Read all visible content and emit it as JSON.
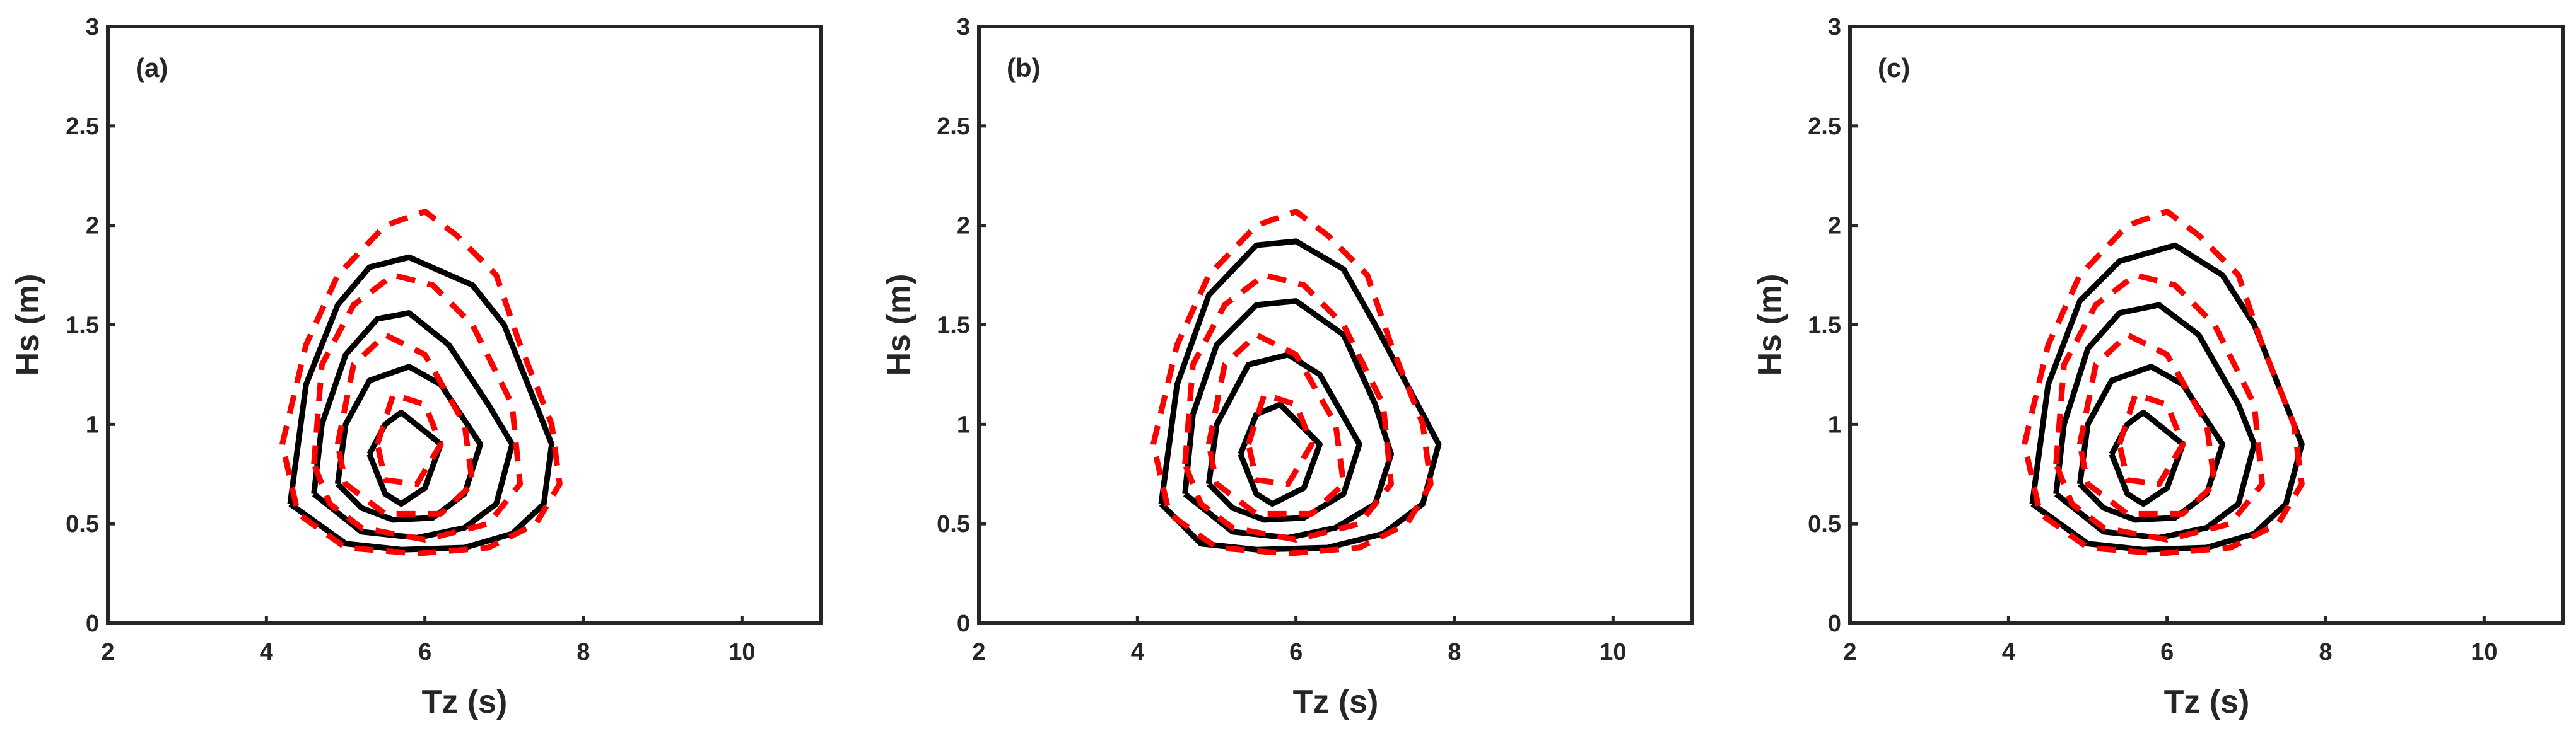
{
  "chart_data": [
    {
      "type": "line",
      "panel_label": "(a)",
      "xlabel": "Tz (s)",
      "ylabel": "Hs (m)",
      "xlim": [
        2,
        11
      ],
      "ylim": [
        0,
        3
      ],
      "xticks": [
        2,
        4,
        6,
        8,
        10
      ],
      "yticks": [
        0,
        0.5,
        1,
        1.5,
        2,
        2.5,
        3
      ],
      "series": [
        {
          "color": "#000000",
          "dashed": false,
          "x": [
            4.3,
            4.5,
            4.9,
            5.3,
            5.8,
            6.6,
            7.0,
            7.3,
            7.6,
            7.5,
            7.1,
            6.5,
            5.7,
            5.0,
            4.3
          ],
          "y": [
            0.6,
            1.2,
            1.6,
            1.79,
            1.84,
            1.7,
            1.5,
            1.2,
            0.9,
            0.6,
            0.45,
            0.38,
            0.37,
            0.4,
            0.6
          ]
        },
        {
          "color": "#000000",
          "dashed": false,
          "x": [
            4.6,
            4.7,
            5.0,
            5.4,
            5.8,
            6.3,
            6.8,
            7.1,
            6.9,
            6.5,
            5.9,
            5.2,
            4.6
          ],
          "y": [
            0.65,
            1.0,
            1.35,
            1.53,
            1.56,
            1.4,
            1.1,
            0.9,
            0.6,
            0.48,
            0.43,
            0.46,
            0.65
          ]
        },
        {
          "color": "#000000",
          "dashed": false,
          "x": [
            4.9,
            5.0,
            5.3,
            5.8,
            6.2,
            6.7,
            6.5,
            6.1,
            5.6,
            5.2,
            4.9
          ],
          "y": [
            0.7,
            1.0,
            1.22,
            1.29,
            1.2,
            0.9,
            0.65,
            0.53,
            0.52,
            0.58,
            0.7
          ]
        },
        {
          "color": "#000000",
          "dashed": false,
          "x": [
            5.3,
            5.5,
            5.7,
            6.2,
            6.0,
            5.7,
            5.5,
            5.3
          ],
          "y": [
            0.85,
            1.0,
            1.06,
            0.9,
            0.68,
            0.6,
            0.65,
            0.85
          ]
        },
        {
          "color": "#ff0000",
          "dashed": true,
          "x": [
            4.2,
            4.5,
            4.9,
            5.5,
            6.0,
            6.4,
            6.9,
            7.2,
            7.6,
            7.7,
            7.4,
            6.8,
            5.9,
            5.0,
            4.4,
            4.2
          ],
          "y": [
            0.9,
            1.4,
            1.75,
            2.0,
            2.07,
            1.95,
            1.75,
            1.4,
            1.0,
            0.7,
            0.5,
            0.38,
            0.35,
            0.38,
            0.55,
            0.9
          ]
        },
        {
          "color": "#ff0000",
          "dashed": true,
          "x": [
            4.6,
            4.7,
            5.1,
            5.6,
            6.1,
            6.6,
            7.1,
            7.2,
            6.8,
            6.0,
            5.2,
            4.8,
            4.6
          ],
          "y": [
            0.8,
            1.3,
            1.6,
            1.75,
            1.7,
            1.5,
            1.1,
            0.7,
            0.5,
            0.42,
            0.48,
            0.6,
            0.8
          ]
        },
        {
          "color": "#ff0000",
          "dashed": true,
          "x": [
            4.9,
            5.1,
            5.5,
            6.0,
            6.5,
            6.6,
            6.2,
            5.5,
            5.0,
            4.9
          ],
          "y": [
            0.9,
            1.3,
            1.45,
            1.35,
            1.0,
            0.7,
            0.55,
            0.55,
            0.7,
            0.9
          ]
        },
        {
          "color": "#ff0000",
          "dashed": true,
          "x": [
            5.4,
            5.6,
            6.0,
            6.2,
            5.9,
            5.5,
            5.4
          ],
          "y": [
            0.9,
            1.15,
            1.1,
            0.9,
            0.7,
            0.72,
            0.9
          ]
        }
      ]
    },
    {
      "type": "line",
      "panel_label": "(b)",
      "xlabel": "Tz (s)",
      "ylabel": "Hs (m)",
      "xlim": [
        2,
        11
      ],
      "ylim": [
        0,
        3
      ],
      "xticks": [
        2,
        4,
        6,
        8,
        10
      ],
      "yticks": [
        0,
        0.5,
        1,
        1.5,
        2,
        2.5,
        3
      ],
      "series": [
        {
          "color": "#000000",
          "dashed": false,
          "x": [
            4.3,
            4.5,
            4.9,
            5.5,
            6.0,
            6.6,
            7.0,
            7.4,
            7.8,
            7.6,
            7.1,
            6.4,
            5.5,
            4.8,
            4.3
          ],
          "y": [
            0.6,
            1.2,
            1.65,
            1.9,
            1.92,
            1.78,
            1.5,
            1.2,
            0.9,
            0.6,
            0.45,
            0.38,
            0.37,
            0.4,
            0.6
          ]
        },
        {
          "color": "#000000",
          "dashed": false,
          "x": [
            4.6,
            4.7,
            5.0,
            5.5,
            6.0,
            6.6,
            7.0,
            7.2,
            7.0,
            6.5,
            5.9,
            5.2,
            4.6
          ],
          "y": [
            0.65,
            1.05,
            1.4,
            1.6,
            1.62,
            1.45,
            1.1,
            0.85,
            0.6,
            0.48,
            0.43,
            0.46,
            0.65
          ]
        },
        {
          "color": "#000000",
          "dashed": false,
          "x": [
            4.9,
            5.0,
            5.4,
            5.9,
            6.3,
            6.8,
            6.6,
            6.1,
            5.6,
            5.2,
            4.9
          ],
          "y": [
            0.7,
            1.0,
            1.3,
            1.35,
            1.25,
            0.9,
            0.65,
            0.53,
            0.52,
            0.58,
            0.7
          ]
        },
        {
          "color": "#000000",
          "dashed": false,
          "x": [
            5.3,
            5.5,
            5.8,
            6.3,
            6.1,
            5.7,
            5.5,
            5.3
          ],
          "y": [
            0.85,
            1.05,
            1.1,
            0.9,
            0.68,
            0.6,
            0.65,
            0.85
          ]
        },
        {
          "color": "#ff0000",
          "dashed": true,
          "x": [
            4.2,
            4.5,
            4.9,
            5.5,
            6.0,
            6.4,
            6.9,
            7.2,
            7.6,
            7.7,
            7.4,
            6.8,
            5.9,
            5.0,
            4.4,
            4.2
          ],
          "y": [
            0.9,
            1.4,
            1.75,
            2.0,
            2.07,
            1.95,
            1.75,
            1.4,
            1.0,
            0.7,
            0.5,
            0.38,
            0.35,
            0.38,
            0.55,
            0.9
          ]
        },
        {
          "color": "#ff0000",
          "dashed": true,
          "x": [
            4.6,
            4.7,
            5.1,
            5.6,
            6.1,
            6.6,
            7.1,
            7.2,
            6.8,
            6.0,
            5.2,
            4.8,
            4.6
          ],
          "y": [
            0.8,
            1.3,
            1.6,
            1.75,
            1.7,
            1.5,
            1.1,
            0.7,
            0.5,
            0.42,
            0.48,
            0.6,
            0.8
          ]
        },
        {
          "color": "#ff0000",
          "dashed": true,
          "x": [
            4.9,
            5.1,
            5.5,
            6.0,
            6.5,
            6.6,
            6.2,
            5.5,
            5.0,
            4.9
          ],
          "y": [
            0.9,
            1.3,
            1.45,
            1.35,
            1.0,
            0.7,
            0.55,
            0.55,
            0.7,
            0.9
          ]
        },
        {
          "color": "#ff0000",
          "dashed": true,
          "x": [
            5.4,
            5.6,
            6.0,
            6.2,
            5.9,
            5.5,
            5.4
          ],
          "y": [
            0.9,
            1.15,
            1.1,
            0.9,
            0.7,
            0.72,
            0.9
          ]
        }
      ]
    },
    {
      "type": "line",
      "panel_label": "(c)",
      "xlabel": "Tz (s)",
      "ylabel": "Hs (m)",
      "xlim": [
        2,
        11
      ],
      "ylim": [
        0,
        3
      ],
      "xticks": [
        2,
        4,
        6,
        8,
        10
      ],
      "yticks": [
        0,
        0.5,
        1,
        1.5,
        2,
        2.5,
        3
      ],
      "series": [
        {
          "color": "#000000",
          "dashed": false,
          "x": [
            4.3,
            4.5,
            4.9,
            5.4,
            6.1,
            6.7,
            7.1,
            7.4,
            7.7,
            7.5,
            7.1,
            6.5,
            5.7,
            5.0,
            4.3
          ],
          "y": [
            0.6,
            1.2,
            1.62,
            1.82,
            1.9,
            1.75,
            1.5,
            1.2,
            0.9,
            0.6,
            0.45,
            0.38,
            0.37,
            0.4,
            0.6
          ]
        },
        {
          "color": "#000000",
          "dashed": false,
          "x": [
            4.6,
            4.7,
            5.0,
            5.4,
            5.9,
            6.4,
            6.9,
            7.1,
            6.9,
            6.5,
            5.9,
            5.2,
            4.6
          ],
          "y": [
            0.65,
            1.0,
            1.38,
            1.56,
            1.6,
            1.45,
            1.1,
            0.9,
            0.6,
            0.48,
            0.43,
            0.46,
            0.65
          ]
        },
        {
          "color": "#000000",
          "dashed": false,
          "x": [
            4.9,
            5.0,
            5.3,
            5.8,
            6.2,
            6.7,
            6.5,
            6.1,
            5.6,
            5.2,
            4.9
          ],
          "y": [
            0.7,
            1.0,
            1.22,
            1.29,
            1.2,
            0.9,
            0.65,
            0.53,
            0.52,
            0.58,
            0.7
          ]
        },
        {
          "color": "#000000",
          "dashed": false,
          "x": [
            5.3,
            5.5,
            5.7,
            6.2,
            6.0,
            5.7,
            5.5,
            5.3
          ],
          "y": [
            0.85,
            1.0,
            1.06,
            0.9,
            0.68,
            0.6,
            0.65,
            0.85
          ]
        },
        {
          "color": "#ff0000",
          "dashed": true,
          "x": [
            4.2,
            4.5,
            4.9,
            5.5,
            6.0,
            6.4,
            6.9,
            7.2,
            7.6,
            7.7,
            7.4,
            6.8,
            5.9,
            5.0,
            4.4,
            4.2
          ],
          "y": [
            0.9,
            1.4,
            1.75,
            2.0,
            2.07,
            1.95,
            1.75,
            1.4,
            1.0,
            0.7,
            0.5,
            0.38,
            0.35,
            0.38,
            0.55,
            0.9
          ]
        },
        {
          "color": "#ff0000",
          "dashed": true,
          "x": [
            4.6,
            4.7,
            5.1,
            5.6,
            6.1,
            6.6,
            7.1,
            7.2,
            6.8,
            6.0,
            5.2,
            4.8,
            4.6
          ],
          "y": [
            0.8,
            1.3,
            1.6,
            1.75,
            1.7,
            1.5,
            1.1,
            0.7,
            0.5,
            0.42,
            0.48,
            0.6,
            0.8
          ]
        },
        {
          "color": "#ff0000",
          "dashed": true,
          "x": [
            4.9,
            5.1,
            5.5,
            6.0,
            6.5,
            6.6,
            6.2,
            5.5,
            5.0,
            4.9
          ],
          "y": [
            0.9,
            1.3,
            1.45,
            1.35,
            1.0,
            0.7,
            0.55,
            0.55,
            0.7,
            0.9
          ]
        },
        {
          "color": "#ff0000",
          "dashed": true,
          "x": [
            5.4,
            5.6,
            6.0,
            6.2,
            5.9,
            5.5,
            5.4
          ],
          "y": [
            0.9,
            1.15,
            1.1,
            0.9,
            0.7,
            0.72,
            0.9
          ]
        }
      ]
    }
  ]
}
